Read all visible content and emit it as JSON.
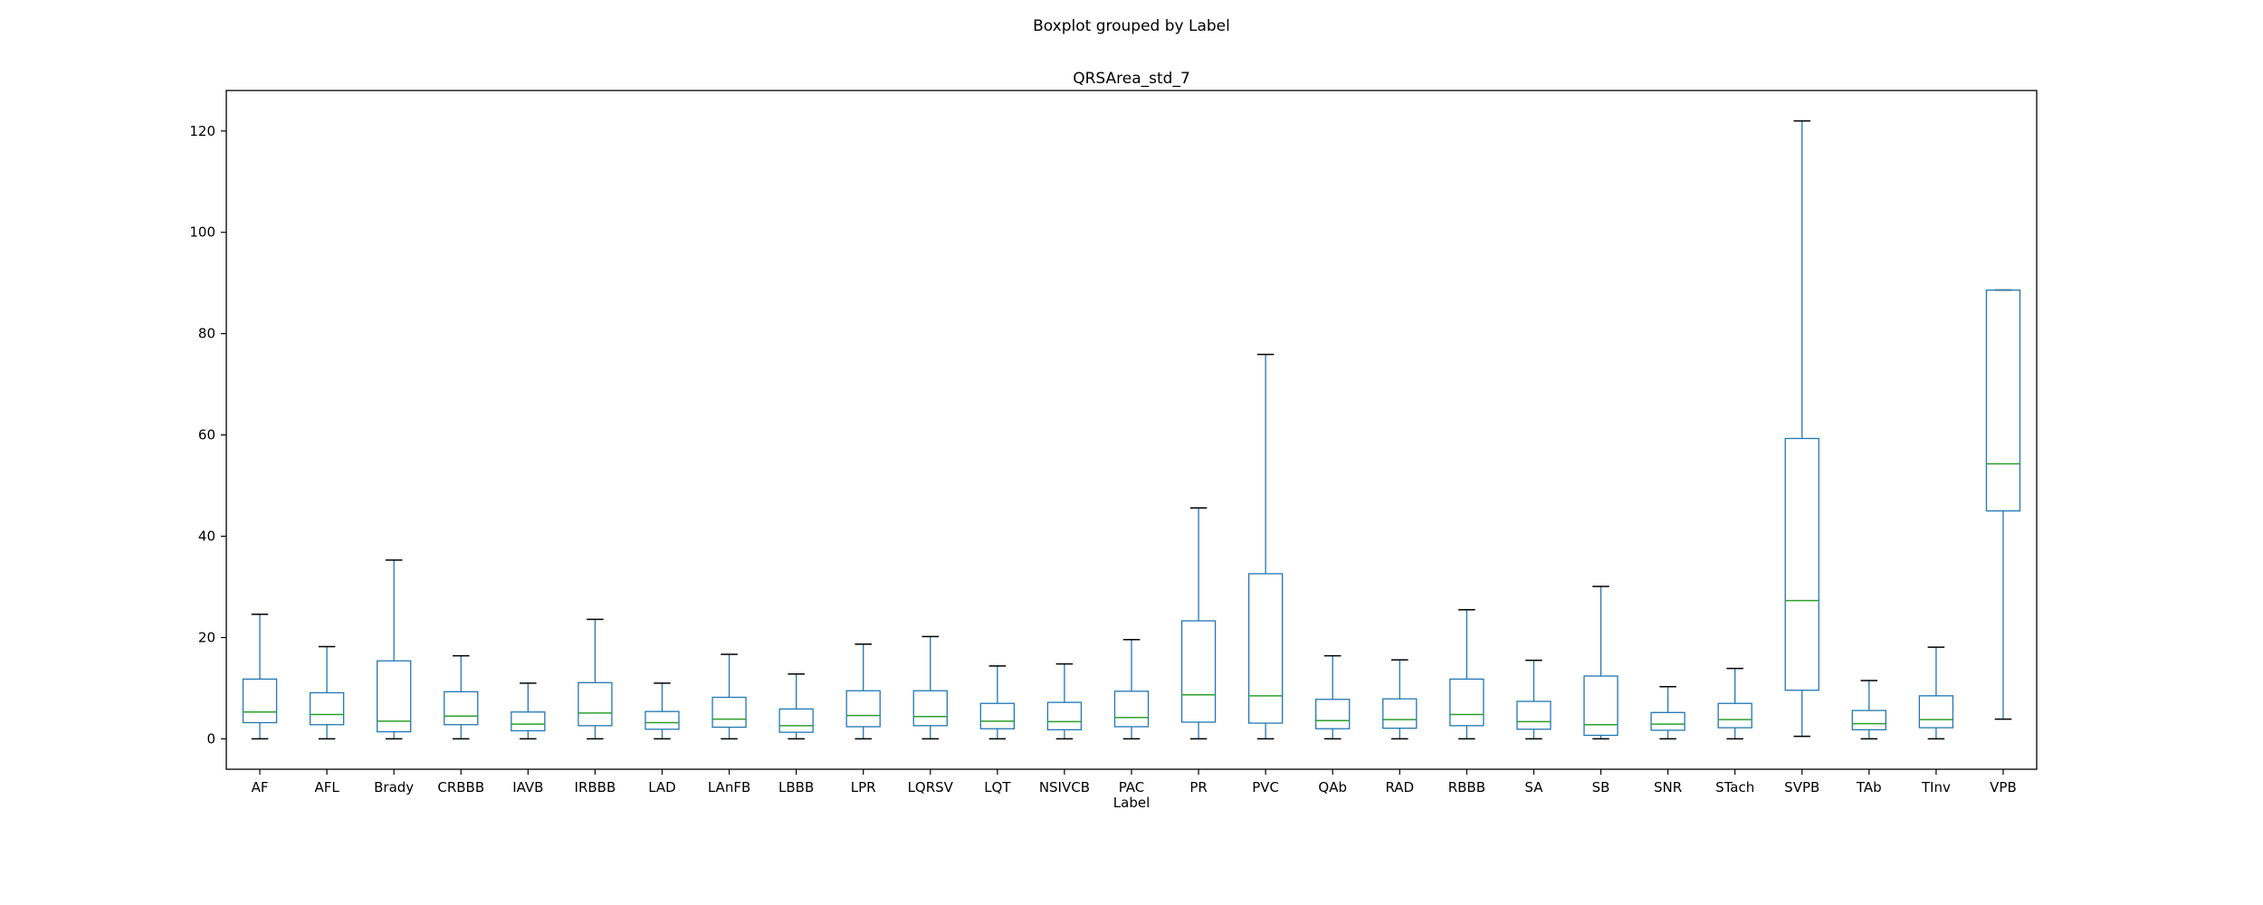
{
  "chart_data": {
    "type": "boxplot",
    "suptitle": "Boxplot grouped by Label",
    "title": "QRSArea_std_7",
    "xlabel": "Label",
    "ylabel": "",
    "ylim": [
      -6,
      128
    ],
    "yticks": [
      0,
      20,
      40,
      60,
      80,
      100,
      120
    ],
    "grid": false,
    "box_color": "#1f77b4",
    "median_color": "#2ca02c",
    "whisker_cap_color": "#000000",
    "categories": [
      "AF",
      "AFL",
      "Brady",
      "CRBBB",
      "IAVB",
      "IRBBB",
      "LAD",
      "LAnFB",
      "LBBB",
      "LPR",
      "LQRSV",
      "LQT",
      "NSIVCB",
      "PAC",
      "PR",
      "PVC",
      "QAb",
      "RAD",
      "RBBB",
      "SA",
      "SB",
      "SNR",
      "STach",
      "SVPB",
      "TAb",
      "TInv",
      "VPB"
    ],
    "boxes": [
      {
        "label": "AF",
        "whislo": 0.0,
        "q1": 3.2,
        "median": 5.3,
        "q3": 11.8,
        "whishi": 24.6
      },
      {
        "label": "AFL",
        "whislo": 0.0,
        "q1": 2.8,
        "median": 4.8,
        "q3": 9.1,
        "whishi": 18.2
      },
      {
        "label": "Brady",
        "whislo": 0.0,
        "q1": 1.4,
        "median": 3.5,
        "q3": 15.4,
        "whishi": 35.3
      },
      {
        "label": "CRBBB",
        "whislo": 0.0,
        "q1": 2.8,
        "median": 4.5,
        "q3": 9.3,
        "whishi": 16.4
      },
      {
        "label": "IAVB",
        "whislo": 0.0,
        "q1": 1.6,
        "median": 2.9,
        "q3": 5.3,
        "whishi": 11.0
      },
      {
        "label": "IRBBB",
        "whislo": 0.0,
        "q1": 2.6,
        "median": 5.1,
        "q3": 11.1,
        "whishi": 23.6
      },
      {
        "label": "LAD",
        "whislo": 0.0,
        "q1": 1.9,
        "median": 3.2,
        "q3": 5.4,
        "whishi": 11.0
      },
      {
        "label": "LAnFB",
        "whislo": 0.0,
        "q1": 2.3,
        "median": 3.9,
        "q3": 8.2,
        "whishi": 16.7
      },
      {
        "label": "LBBB",
        "whislo": 0.0,
        "q1": 1.3,
        "median": 2.6,
        "q3": 5.9,
        "whishi": 12.8
      },
      {
        "label": "LPR",
        "whislo": 0.0,
        "q1": 2.4,
        "median": 4.6,
        "q3": 9.5,
        "whishi": 18.7
      },
      {
        "label": "LQRSV",
        "whislo": 0.0,
        "q1": 2.6,
        "median": 4.4,
        "q3": 9.5,
        "whishi": 20.2
      },
      {
        "label": "LQT",
        "whislo": 0.0,
        "q1": 2.0,
        "median": 3.5,
        "q3": 7.0,
        "whishi": 14.4
      },
      {
        "label": "NSIVCB",
        "whislo": 0.0,
        "q1": 1.8,
        "median": 3.4,
        "q3": 7.2,
        "whishi": 14.8
      },
      {
        "label": "PAC",
        "whislo": 0.0,
        "q1": 2.4,
        "median": 4.2,
        "q3": 9.4,
        "whishi": 19.6
      },
      {
        "label": "PR",
        "whislo": 0.0,
        "q1": 3.3,
        "median": 8.7,
        "q3": 23.3,
        "whishi": 45.6
      },
      {
        "label": "PVC",
        "whislo": 0.0,
        "q1": 3.1,
        "median": 8.5,
        "q3": 32.6,
        "whishi": 75.9
      },
      {
        "label": "QAb",
        "whislo": 0.0,
        "q1": 2.0,
        "median": 3.6,
        "q3": 7.8,
        "whishi": 16.4
      },
      {
        "label": "RAD",
        "whislo": 0.0,
        "q1": 2.1,
        "median": 3.8,
        "q3": 7.9,
        "whishi": 15.6
      },
      {
        "label": "RBBB",
        "whislo": 0.0,
        "q1": 2.6,
        "median": 4.8,
        "q3": 11.8,
        "whishi": 25.5
      },
      {
        "label": "SA",
        "whislo": 0.0,
        "q1": 1.9,
        "median": 3.4,
        "q3": 7.4,
        "whishi": 15.5
      },
      {
        "label": "SB",
        "whislo": 0.0,
        "q1": 0.7,
        "median": 2.8,
        "q3": 12.4,
        "whishi": 30.1
      },
      {
        "label": "SNR",
        "whislo": 0.0,
        "q1": 1.7,
        "median": 2.9,
        "q3": 5.2,
        "whishi": 10.3
      },
      {
        "label": "STach",
        "whislo": 0.0,
        "q1": 2.2,
        "median": 3.8,
        "q3": 7.0,
        "whishi": 13.9
      },
      {
        "label": "SVPB",
        "whislo": 0.5,
        "q1": 9.6,
        "median": 27.3,
        "q3": 59.3,
        "whishi": 122.0
      },
      {
        "label": "TAb",
        "whislo": 0.0,
        "q1": 1.8,
        "median": 3.0,
        "q3": 5.6,
        "whishi": 11.5
      },
      {
        "label": "TInv",
        "whislo": 0.0,
        "q1": 2.2,
        "median": 3.8,
        "q3": 8.5,
        "whishi": 18.1
      },
      {
        "label": "VPB",
        "whislo": 3.9,
        "q1": 45.0,
        "median": 54.3,
        "q3": 88.6,
        "whishi": 88.6
      }
    ]
  }
}
